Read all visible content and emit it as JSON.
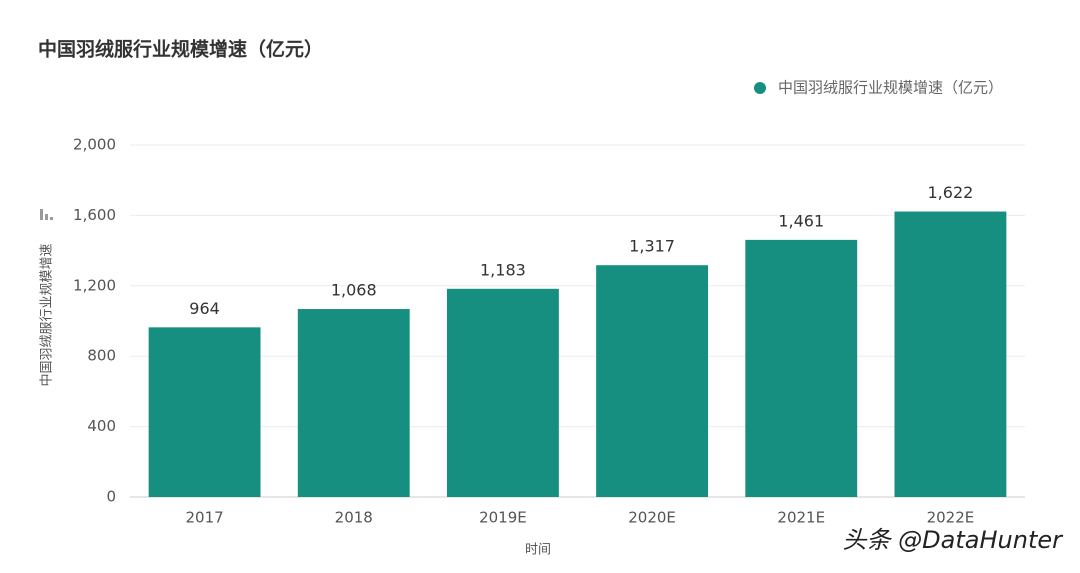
{
  "chart_data": {
    "type": "bar",
    "title": "中国羽绒服行业规模增速（亿元）",
    "categories": [
      "2017",
      "2018",
      "2019E",
      "2020E",
      "2021E",
      "2022E"
    ],
    "series": [
      {
        "name": "中国羽绒服行业规模增速（亿元）",
        "color": "#178f80",
        "values": [
          964,
          1068,
          1183,
          1317,
          1461,
          1622
        ],
        "value_labels": [
          "964",
          "1,068",
          "1,183",
          "1,317",
          "1,461",
          "1,622"
        ]
      }
    ],
    "x_label": "时间",
    "y_label": "中国羽绒服行业规模增速",
    "ylim": [
      0,
      2000
    ],
    "yticks": [
      0,
      400,
      800,
      {
        "value": 1200,
        "label": "1,200"
      },
      {
        "value": 1600,
        "label": "1,600"
      },
      {
        "value": 2000,
        "label": "2,000"
      }
    ],
    "grid": true,
    "legend": "top-right",
    "watermark": "头条 @DataHunter"
  }
}
